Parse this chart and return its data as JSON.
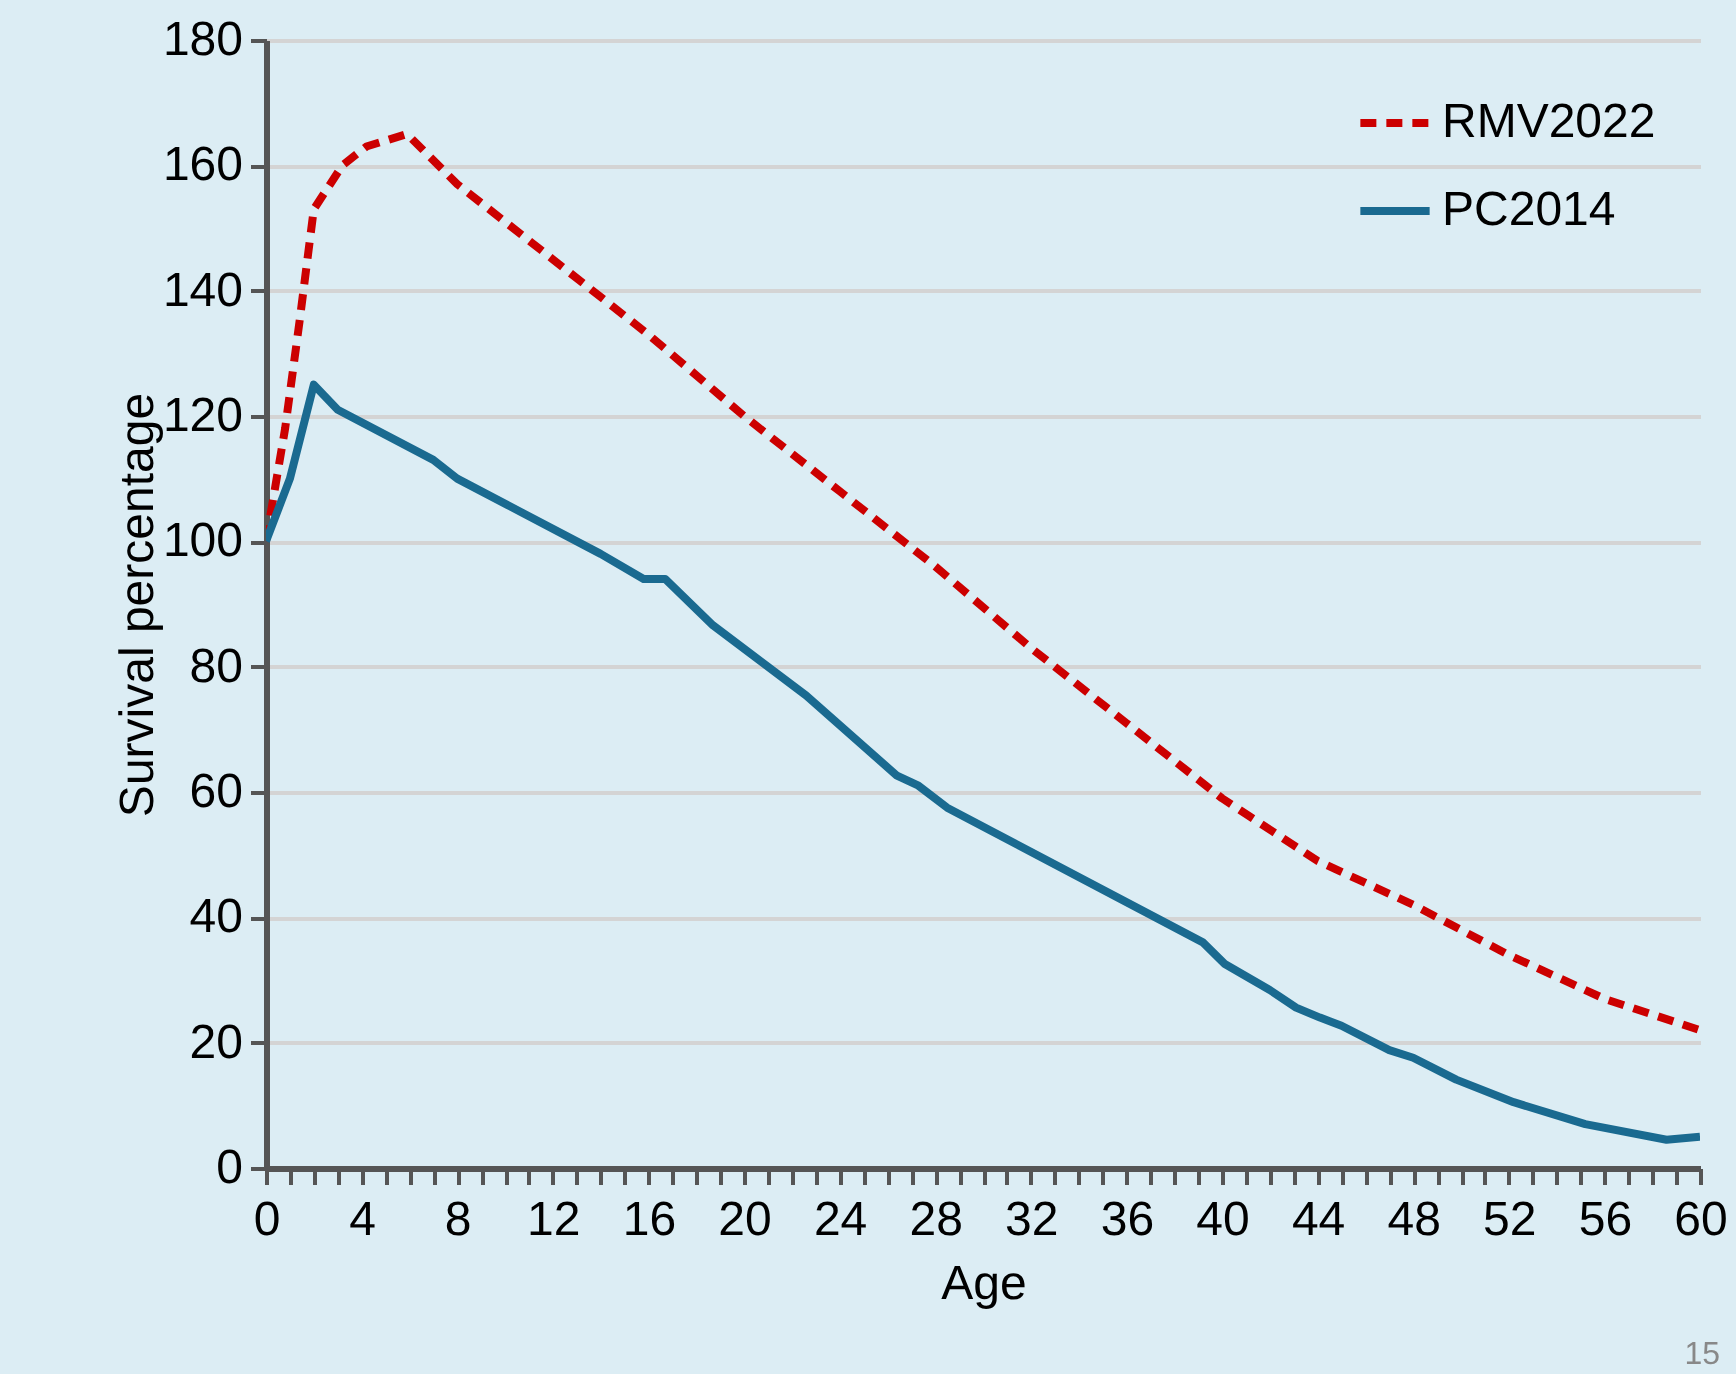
{
  "chart_data": {
    "type": "line",
    "xlabel": "Age",
    "ylabel": "Survival percentage",
    "xlim": [
      0,
      60
    ],
    "ylim": [
      0,
      180
    ],
    "xticks": [
      0,
      {
        "value": 1,
        "label": null
      },
      {
        "value": 2,
        "label": null
      },
      {
        "value": 3,
        "label": null
      },
      4,
      {
        "value": 5,
        "label": null
      },
      {
        "value": 6,
        "label": null
      },
      {
        "value": 7,
        "label": null
      },
      8,
      {
        "value": 9,
        "label": null
      },
      {
        "value": 10,
        "label": null
      },
      {
        "value": 11,
        "label": null
      },
      12,
      {
        "value": 13,
        "label": null
      },
      {
        "value": 14,
        "label": null
      },
      {
        "value": 15,
        "label": null
      },
      16,
      {
        "value": 17,
        "label": null
      },
      {
        "value": 18,
        "label": null
      },
      {
        "value": 19,
        "label": null
      },
      20,
      {
        "value": 21,
        "label": null
      },
      {
        "value": 22,
        "label": null
      },
      {
        "value": 23,
        "label": null
      },
      24,
      {
        "value": 25,
        "label": null
      },
      {
        "value": 26,
        "label": null
      },
      {
        "value": 27,
        "label": null
      },
      28,
      {
        "value": 29,
        "label": null
      },
      {
        "value": 30,
        "label": null
      },
      {
        "value": 31,
        "label": null
      },
      32,
      {
        "value": 33,
        "label": null
      },
      {
        "value": 34,
        "label": null
      },
      {
        "value": 35,
        "label": null
      },
      36,
      {
        "value": 37,
        "label": null
      },
      {
        "value": 38,
        "label": null
      },
      {
        "value": 39,
        "label": null
      },
      40,
      {
        "value": 41,
        "label": null
      },
      {
        "value": 42,
        "label": null
      },
      {
        "value": 43,
        "label": null
      },
      44,
      {
        "value": 45,
        "label": null
      },
      {
        "value": 46,
        "label": null
      },
      {
        "value": 47,
        "label": null
      },
      48,
      {
        "value": 49,
        "label": null
      },
      {
        "value": 50,
        "label": null
      },
      {
        "value": 51,
        "label": null
      },
      52,
      {
        "value": 53,
        "label": null
      },
      {
        "value": 54,
        "label": null
      },
      {
        "value": 55,
        "label": null
      },
      56,
      {
        "value": 57,
        "label": null
      },
      {
        "value": 58,
        "label": null
      },
      {
        "value": 59,
        "label": null
      },
      60
    ],
    "yticks": [
      0,
      20,
      40,
      60,
      80,
      100,
      120,
      140,
      160,
      180
    ],
    "grid": "y",
    "legend": "top right",
    "marker": "none",
    "series": [
      {
        "name": "RMV2022",
        "color": "#cc0000",
        "line_style": "dashed",
        "x": [
          0,
          0.8,
          1.4,
          2,
          3.2,
          4.2,
          5.9,
          8,
          12,
          16,
          20,
          24,
          28,
          32,
          36,
          40,
          44,
          48,
          52,
          56,
          60
        ],
        "values": [
          100,
          118,
          135,
          153,
          160,
          163,
          165,
          157,
          145,
          133,
          120,
          108,
          96,
          83,
          71,
          59,
          49,
          42,
          34,
          27,
          22
        ]
      },
      {
        "name": "PC2014",
        "color": "#1a6a90",
        "line_style": "solid",
        "x": [
          0,
          1,
          2,
          3,
          7,
          8,
          14,
          15.8,
          16.7,
          18.7,
          22.6,
          26.4,
          27.3,
          28.5,
          39.2,
          40.1,
          42,
          43.1,
          44.1,
          45,
          47,
          48,
          49.8,
          52.2,
          55.2,
          58.6,
          60
        ],
        "values": [
          100,
          110,
          125,
          121,
          113,
          110,
          98,
          94,
          94,
          86.6,
          75.4,
          62.6,
          61,
          57.5,
          36,
          32.6,
          28.4,
          25.6,
          24,
          22.7,
          18.8,
          17.6,
          14.1,
          10.5,
          7,
          4.5,
          5
        ]
      }
    ],
    "annotations": [
      "15"
    ]
  }
}
